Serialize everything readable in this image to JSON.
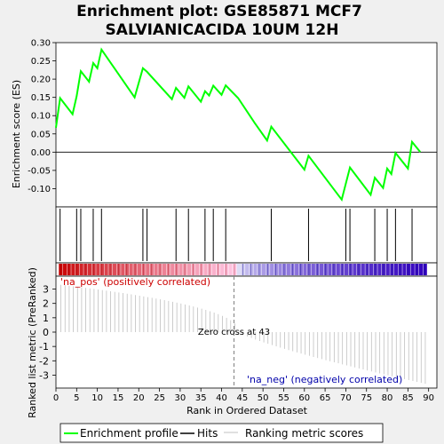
{
  "chart_data": {
    "type": "line",
    "title": [
      "Enrichment plot: GSE85871 MCF7",
      "SALVIANICACIDA 10UM 12H"
    ],
    "xlabel": "Rank in Ordered Dataset",
    "ylabel_top": "Enrichment score (ES)",
    "ylabel_bottom": "Ranked list metric (PreRanked)",
    "xlim": [
      0,
      92
    ],
    "ylim_top": [
      -0.15,
      0.3
    ],
    "ylim_bottom": [
      -3.9,
      3.9
    ],
    "x_ticks": [
      0,
      5,
      10,
      15,
      20,
      25,
      30,
      35,
      40,
      45,
      50,
      55,
      60,
      65,
      70,
      75,
      80,
      85,
      90
    ],
    "y_ticks_top": [
      -0.1,
      -0.05,
      0.0,
      0.05,
      0.1,
      0.15,
      0.2,
      0.25,
      0.3
    ],
    "y_ticks_top_labels": [
      "-0.10",
      "-0.05",
      "0.00",
      "0.05",
      "0.10",
      "0.15",
      "0.20",
      "0.25",
      "0.30"
    ],
    "y_ticks_bottom": [
      -3,
      -2,
      -1,
      0,
      1,
      2,
      3
    ],
    "enrichment_profile": {
      "x": [
        0,
        1,
        4,
        5,
        6,
        8,
        9,
        10,
        11,
        19,
        21,
        22,
        28,
        29,
        31,
        32,
        35,
        36,
        37,
        38,
        40,
        41,
        44,
        48,
        51,
        52,
        60,
        61,
        69,
        71,
        76,
        77,
        79,
        80,
        81,
        82,
        85,
        86,
        88
      ],
      "y": [
        0.067,
        0.148,
        0.104,
        0.153,
        0.222,
        0.193,
        0.244,
        0.23,
        0.281,
        0.15,
        0.23,
        0.22,
        0.145,
        0.176,
        0.149,
        0.18,
        0.138,
        0.167,
        0.155,
        0.182,
        0.157,
        0.183,
        0.148,
        0.08,
        0.032,
        0.07,
        -0.048,
        -0.01,
        -0.13,
        -0.042,
        -0.117,
        -0.07,
        -0.098,
        -0.045,
        -0.06,
        -0.002,
        -0.045,
        0.028,
        0.0
      ]
    },
    "hits": [
      1,
      5,
      6,
      9,
      11,
      21,
      22,
      29,
      32,
      36,
      38,
      41,
      52,
      61,
      70,
      71,
      77,
      80,
      82,
      86
    ],
    "zero_cross": 43,
    "zero_cross_label": "Zero cross at 43",
    "pos_label": "'na_pos' (positively correlated)",
    "neg_label": "'na_neg' (negatively correlated)",
    "n_genes": 89,
    "metric_endpoints": {
      "first": 3.3,
      "at_zero_cross": 0.0,
      "last": -3.6
    },
    "legend": [
      "Enrichment profile",
      "Hits",
      "Ranking metric scores"
    ],
    "colors": {
      "profile": "#00ff00",
      "hits": "#000000",
      "metric": "#c0c0c0",
      "pos_label": "#cc0000",
      "neg_label": "#0000aa",
      "zero_line": "#808080"
    }
  }
}
